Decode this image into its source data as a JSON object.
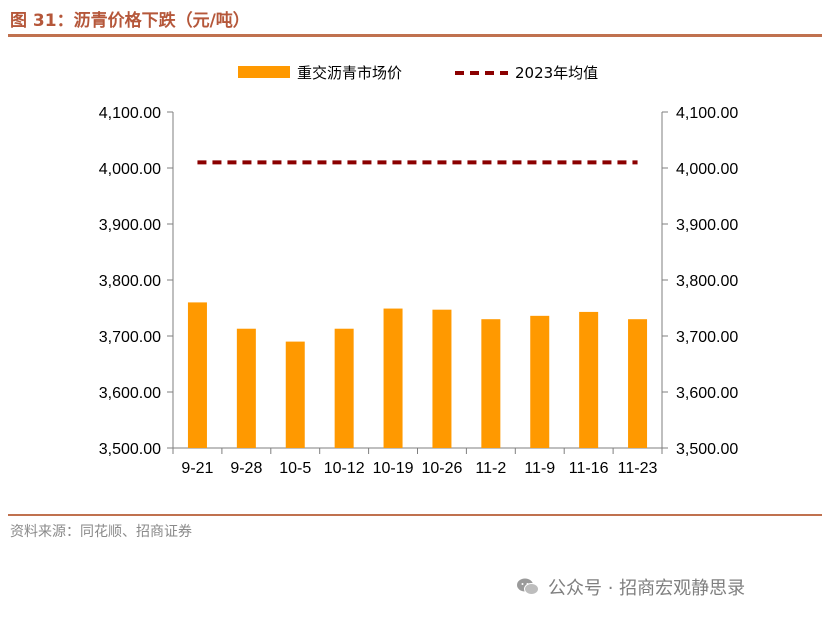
{
  "header": {
    "title": "图 31：沥青价格下跌（元/吨）"
  },
  "footer": {
    "source": "资料来源：同花顺、招商证券",
    "watermark": "公众号 · 招商宏观静思录"
  },
  "chart_data": {
    "type": "bar",
    "categories": [
      "9-21",
      "9-28",
      "10-5",
      "10-12",
      "10-19",
      "10-26",
      "11-2",
      "11-9",
      "11-16",
      "11-23"
    ],
    "series": [
      {
        "name": "重交沥青市场价",
        "type": "bar",
        "color": "#ff9900",
        "values": [
          3760,
          3713,
          3690,
          3713,
          3749,
          3747,
          3730,
          3736,
          3743,
          3730
        ]
      },
      {
        "name": "2023年均值",
        "type": "line",
        "style": "dashed",
        "color": "#8b0000",
        "values": [
          4010,
          4010,
          4010,
          4010,
          4010,
          4010,
          4010,
          4010,
          4010,
          4010
        ]
      }
    ],
    "ylim": [
      3500,
      4100
    ],
    "yticks": [
      "3,500.00",
      "3,600.00",
      "3,700.00",
      "3,800.00",
      "3,900.00",
      "4,000.00",
      "4,100.00"
    ],
    "y2lim": [
      3500,
      4100
    ],
    "y2ticks": [
      "3,500.00",
      "3,600.00",
      "3,700.00",
      "3,800.00",
      "3,900.00",
      "4,000.00",
      "4,100.00"
    ],
    "legend": "top"
  }
}
